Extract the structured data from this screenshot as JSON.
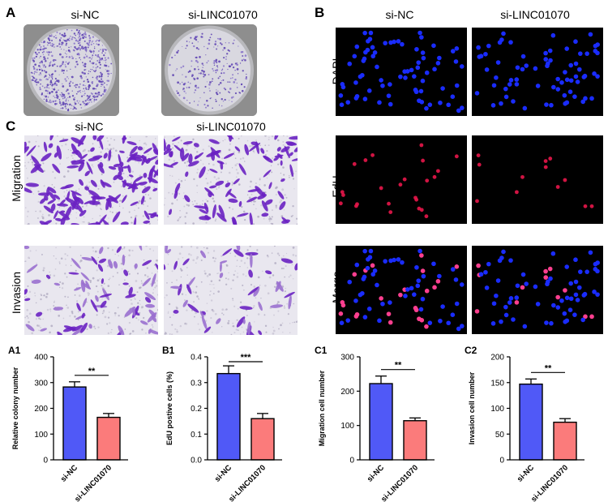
{
  "panels": {
    "A": {
      "letter": "A",
      "columns": [
        "si-NC",
        "si-LINC01070"
      ],
      "dish_colonies": [
        {
          "count": 650,
          "edge_bias": 0.75
        },
        {
          "count": 230,
          "edge_bias": 0.4
        }
      ]
    },
    "B": {
      "letter": "B",
      "columns": [
        "si-NC",
        "si-LINC01070"
      ],
      "rows": [
        "DAPI",
        "EdU",
        "Merge"
      ],
      "nuclei_counts": {
        "si-NC": 75,
        "si-LINC01070": 72
      },
      "edu_counts": {
        "si-NC": 24,
        "si-LINC01070": 12
      },
      "colors": {
        "dapi": "#1a2cff",
        "edu": "#e8164a",
        "merge": "#ff3f8f",
        "background": "#000000"
      }
    },
    "C": {
      "letter": "C",
      "columns": [
        "si-NC",
        "si-LINC01070"
      ],
      "rows": [
        "Migration",
        "Invasion"
      ],
      "cell_counts": {
        "migration": [
          150,
          95
        ],
        "invasion": [
          70,
          45
        ]
      },
      "colors": {
        "stain": "#6a22c2",
        "stain_light": "#9a70cf",
        "background": "#e9e7ef"
      }
    }
  },
  "chart_data": [
    {
      "panel_label": "A1",
      "type": "bar",
      "categories": [
        "si-NC",
        "si-LINC01070"
      ],
      "values": [
        283,
        165
      ],
      "errors": [
        20,
        15
      ],
      "ylabel": "Relative colony number",
      "ylim": [
        0,
        400
      ],
      "yticks": [
        0,
        100,
        200,
        300,
        400
      ],
      "significance": "**"
    },
    {
      "panel_label": "B1",
      "type": "bar",
      "categories": [
        "si-NC",
        "si-LINC01070"
      ],
      "values": [
        0.335,
        0.16
      ],
      "errors": [
        0.03,
        0.02
      ],
      "ylabel": "EdU postive cells (%)",
      "ylim": [
        0,
        0.4
      ],
      "yticks": [
        "0.0",
        "0.1",
        "0.2",
        "0.3",
        "0.4"
      ],
      "significance": "***"
    },
    {
      "panel_label": "C1",
      "type": "bar",
      "categories": [
        "si-NC",
        "si-LINC01070"
      ],
      "values": [
        222,
        114
      ],
      "errors": [
        22,
        8
      ],
      "ylabel": "Migration cell number",
      "ylim": [
        0,
        300
      ],
      "yticks": [
        0,
        100,
        200,
        300
      ],
      "significance": "**"
    },
    {
      "panel_label": "C2",
      "type": "bar",
      "categories": [
        "si-NC",
        "si-LINC01070"
      ],
      "values": [
        147,
        73
      ],
      "errors": [
        10,
        7
      ],
      "ylabel": "Invasion cell number",
      "ylim": [
        0,
        200
      ],
      "yticks": [
        0,
        50,
        100,
        150,
        200
      ],
      "significance": "**"
    }
  ],
  "bar_colors": [
    "#5059f7",
    "#fb7b7b"
  ]
}
